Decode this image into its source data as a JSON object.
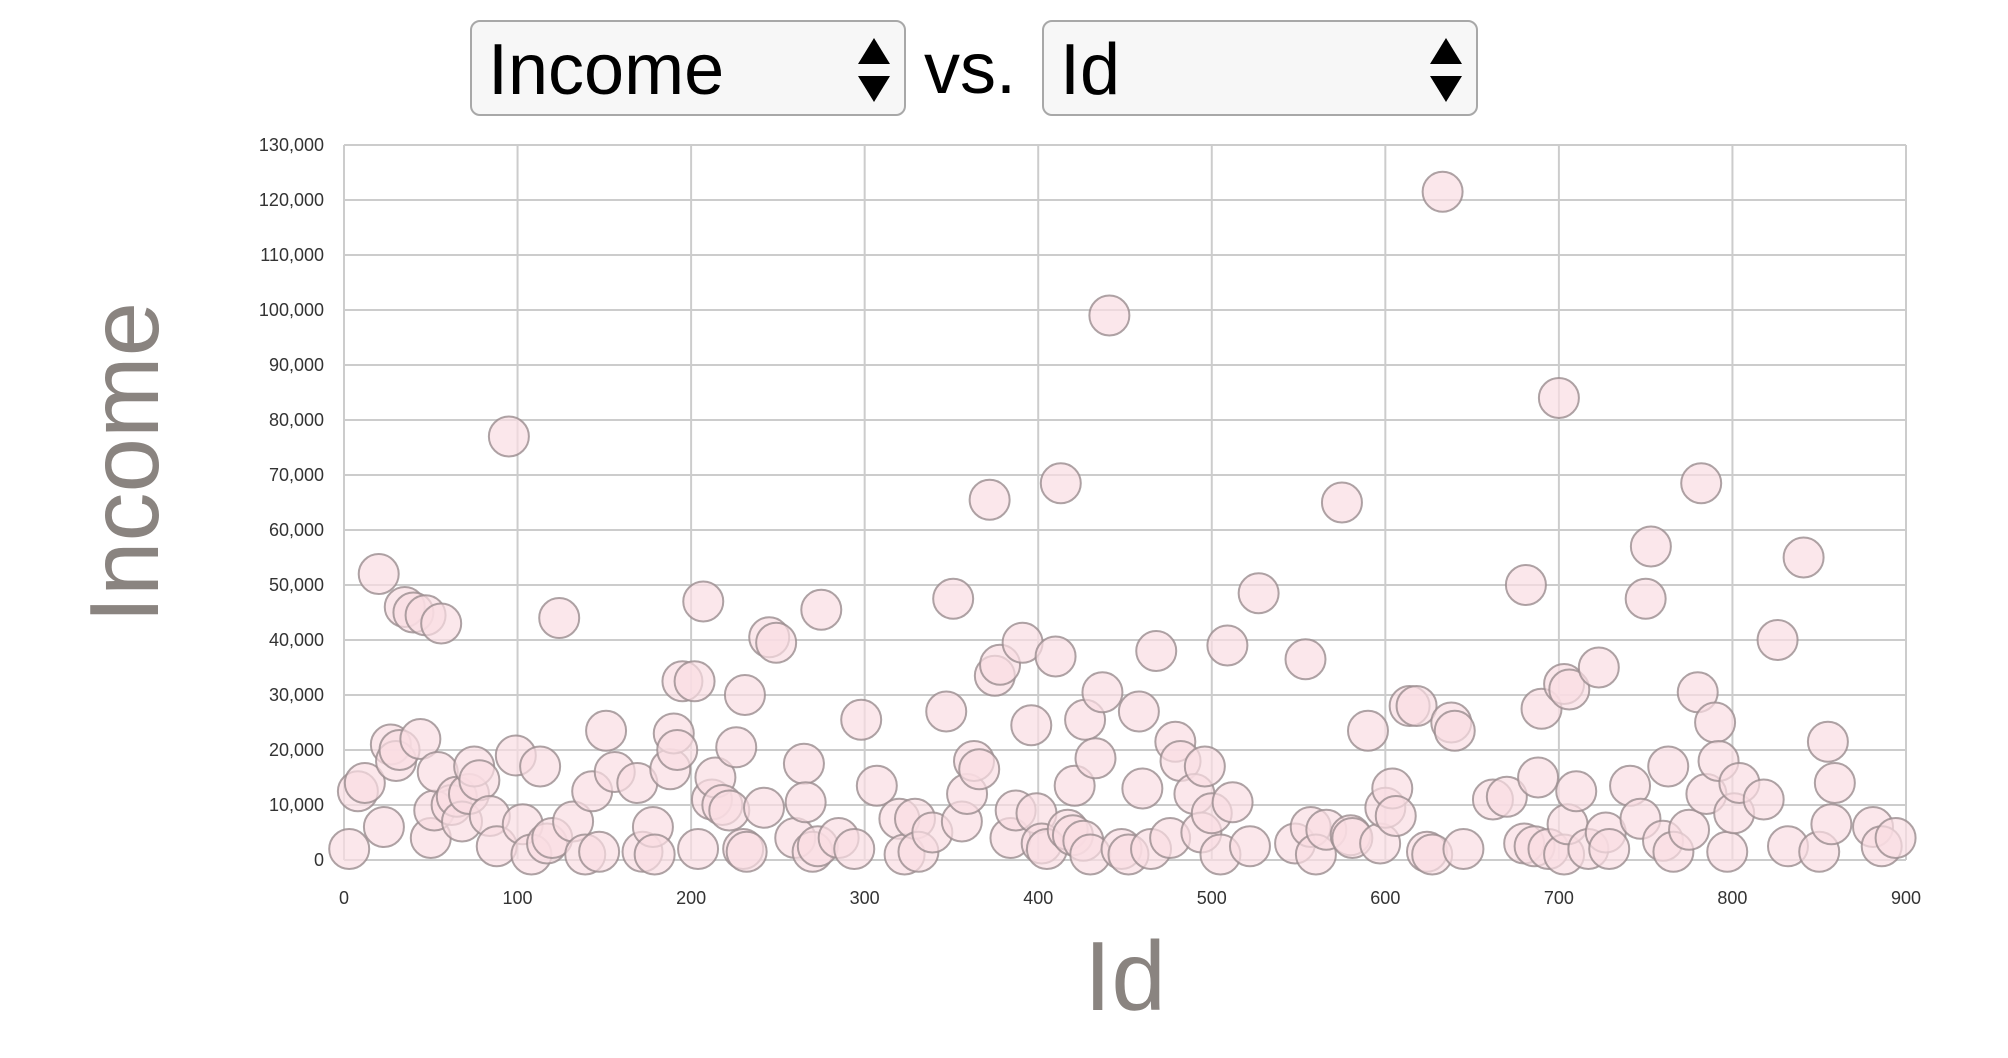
{
  "controls": {
    "x_select_value": "Income",
    "vs_label": "vs.",
    "y_select_value": "Id"
  },
  "chart_data": {
    "type": "scatter",
    "xlabel": "Id",
    "ylabel": "Income",
    "xlim": [
      0,
      900
    ],
    "ylim": [
      0,
      130000
    ],
    "x_ticks": [
      "0",
      "100",
      "200",
      "300",
      "400",
      "500",
      "600",
      "700",
      "800",
      "900"
    ],
    "y_ticks": [
      "0",
      "10,000",
      "20,000",
      "30,000",
      "40,000",
      "50,000",
      "60,000",
      "70,000",
      "80,000",
      "90,000",
      "100,000",
      "110,000",
      "120,000",
      "130,000"
    ],
    "grid": true,
    "marker_fill": "#f9dde2",
    "marker_stroke": "#9a8c8f",
    "points": [
      [
        3,
        2000
      ],
      [
        8,
        12500
      ],
      [
        12,
        14000
      ],
      [
        20,
        52000
      ],
      [
        23,
        6000
      ],
      [
        27,
        21000
      ],
      [
        30,
        18000
      ],
      [
        32,
        20000
      ],
      [
        35,
        46000
      ],
      [
        40,
        45000
      ],
      [
        44,
        22000
      ],
      [
        47,
        44500
      ],
      [
        50,
        4000
      ],
      [
        52,
        9000
      ],
      [
        54,
        16000
      ],
      [
        56,
        43000
      ],
      [
        62,
        10000
      ],
      [
        65,
        11500
      ],
      [
        68,
        7000
      ],
      [
        72,
        12000
      ],
      [
        75,
        17000
      ],
      [
        78,
        14500
      ],
      [
        84,
        8000
      ],
      [
        88,
        2500
      ],
      [
        95,
        77000
      ],
      [
        99,
        19000
      ],
      [
        103,
        6500
      ],
      [
        108,
        1000
      ],
      [
        113,
        17000
      ],
      [
        117,
        3000
      ],
      [
        120,
        4000
      ],
      [
        124,
        44000
      ],
      [
        132,
        7000
      ],
      [
        139,
        1000
      ],
      [
        143,
        12500
      ],
      [
        147,
        1500
      ],
      [
        151,
        23500
      ],
      [
        156,
        16000
      ],
      [
        169,
        14000
      ],
      [
        172,
        1500
      ],
      [
        178,
        6000
      ],
      [
        179,
        1000
      ],
      [
        188,
        16500
      ],
      [
        190,
        23000
      ],
      [
        192,
        20000
      ],
      [
        195,
        32500
      ],
      [
        202,
        32500
      ],
      [
        204,
        2000
      ],
      [
        207,
        47000
      ],
      [
        212,
        11000
      ],
      [
        214,
        15000
      ],
      [
        218,
        10000
      ],
      [
        222,
        9000
      ],
      [
        226,
        20500
      ],
      [
        230,
        2000
      ],
      [
        231,
        30000
      ],
      [
        232,
        1500
      ],
      [
        242,
        9500
      ],
      [
        245,
        40500
      ],
      [
        249,
        39500
      ],
      [
        260,
        4000
      ],
      [
        265,
        17500
      ],
      [
        266,
        10500
      ],
      [
        270,
        1500
      ],
      [
        273,
        2500
      ],
      [
        275,
        45500
      ],
      [
        285,
        4000
      ],
      [
        294,
        2000
      ],
      [
        298,
        25500
      ],
      [
        307,
        13500
      ],
      [
        320,
        7500
      ],
      [
        323,
        1000
      ],
      [
        329,
        7500
      ],
      [
        331,
        1500
      ],
      [
        339,
        5000
      ],
      [
        347,
        27000
      ],
      [
        351,
        47500
      ],
      [
        356,
        7000
      ],
      [
        359,
        12000
      ],
      [
        363,
        18000
      ],
      [
        366,
        16500
      ],
      [
        372,
        65500
      ],
      [
        375,
        33500
      ],
      [
        378,
        35500
      ],
      [
        384,
        4000
      ],
      [
        387,
        9000
      ],
      [
        391,
        39500
      ],
      [
        396,
        24500
      ],
      [
        399,
        8500
      ],
      [
        402,
        3000
      ],
      [
        405,
        2000
      ],
      [
        410,
        37000
      ],
      [
        413,
        68500
      ],
      [
        417,
        5500
      ],
      [
        420,
        4500
      ],
      [
        421,
        13500
      ],
      [
        426,
        3500
      ],
      [
        427,
        25500
      ],
      [
        430,
        1000
      ],
      [
        433,
        18500
      ],
      [
        437,
        30500
      ],
      [
        441,
        99000
      ],
      [
        448,
        2000
      ],
      [
        452,
        1000
      ],
      [
        458,
        27000
      ],
      [
        460,
        13000
      ],
      [
        465,
        2000
      ],
      [
        468,
        38000
      ],
      [
        476,
        4000
      ],
      [
        479,
        21500
      ],
      [
        482,
        18000
      ],
      [
        490,
        12000
      ],
      [
        494,
        5000
      ],
      [
        496,
        17000
      ],
      [
        500,
        8500
      ],
      [
        505,
        1000
      ],
      [
        509,
        39000
      ],
      [
        512,
        10500
      ],
      [
        522,
        2500
      ],
      [
        527,
        48500
      ],
      [
        548,
        3000
      ],
      [
        554,
        36500
      ],
      [
        557,
        6000
      ],
      [
        560,
        1000
      ],
      [
        566,
        5500
      ],
      [
        575,
        65000
      ],
      [
        580,
        4500
      ],
      [
        581,
        4000
      ],
      [
        590,
        23500
      ],
      [
        597,
        3000
      ],
      [
        600,
        9500
      ],
      [
        604,
        13000
      ],
      [
        606,
        8000
      ],
      [
        614,
        28000
      ],
      [
        618,
        28000
      ],
      [
        624,
        1500
      ],
      [
        627,
        1000
      ],
      [
        633,
        121500
      ],
      [
        638,
        25000
      ],
      [
        640,
        23500
      ],
      [
        645,
        2000
      ],
      [
        662,
        11000
      ],
      [
        670,
        11500
      ],
      [
        680,
        3000
      ],
      [
        681,
        50000
      ],
      [
        686,
        2500
      ],
      [
        688,
        15000
      ],
      [
        690,
        27500
      ],
      [
        694,
        2000
      ],
      [
        700,
        84000
      ],
      [
        703,
        32000
      ],
      [
        703,
        1000
      ],
      [
        705,
        6500
      ],
      [
        706,
        31000
      ],
      [
        710,
        12500
      ],
      [
        717,
        2000
      ],
      [
        723,
        35000
      ],
      [
        727,
        5000
      ],
      [
        729,
        2000
      ],
      [
        741,
        13500
      ],
      [
        747,
        7500
      ],
      [
        750,
        47500
      ],
      [
        753,
        57000
      ],
      [
        760,
        3500
      ],
      [
        763,
        17000
      ],
      [
        766,
        1500
      ],
      [
        775,
        5500
      ],
      [
        780,
        30500
      ],
      [
        782,
        68500
      ],
      [
        785,
        12000
      ],
      [
        790,
        25000
      ],
      [
        792,
        18000
      ],
      [
        797,
        1500
      ],
      [
        801,
        8500
      ],
      [
        804,
        14000
      ],
      [
        818,
        11000
      ],
      [
        826,
        40000
      ],
      [
        832,
        2500
      ],
      [
        841,
        55000
      ],
      [
        850,
        1500
      ],
      [
        855,
        21500
      ],
      [
        857,
        6500
      ],
      [
        859,
        14000
      ],
      [
        881,
        6000
      ],
      [
        886,
        2500
      ],
      [
        894,
        4000
      ]
    ]
  }
}
